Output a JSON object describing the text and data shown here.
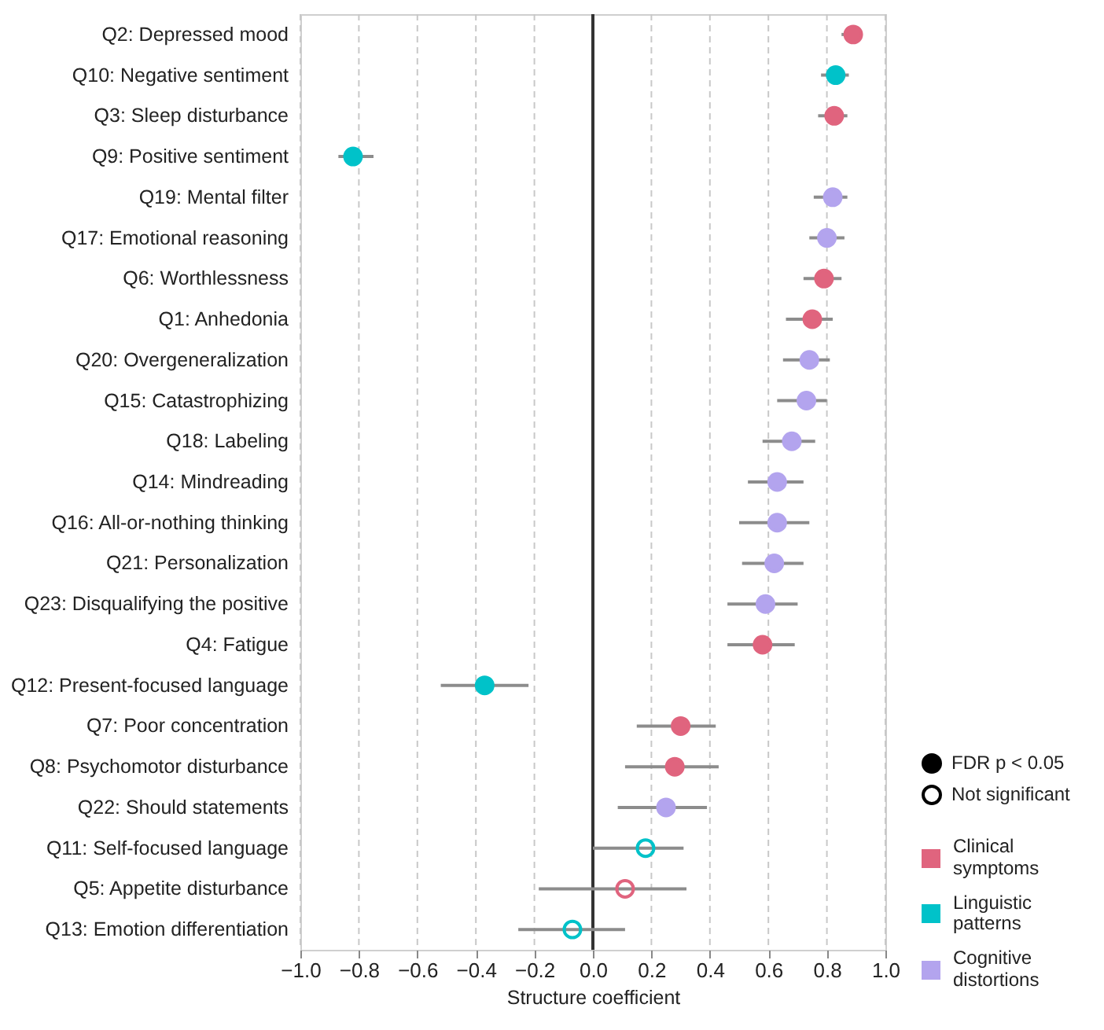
{
  "chart_data": {
    "type": "scatter",
    "orientation": "horizontal",
    "xlabel": "Structure coefficient",
    "categories": [
      "Q2: Depressed mood",
      "Q10: Negative sentiment",
      "Q3: Sleep disturbance",
      "Q9: Positive sentiment",
      "Q19: Mental filter",
      "Q17: Emotional reasoning",
      "Q6: Worthlessness",
      "Q1: Anhedonia",
      "Q20: Overgeneralization",
      "Q15: Catastrophizing",
      "Q18: Labeling",
      "Q14: Mindreading",
      "Q16: All-or-nothing thinking",
      "Q21: Personalization",
      "Q23: Disqualifying the positive",
      "Q4: Fatigue",
      "Q12: Present-focused language",
      "Q7: Poor concentration",
      "Q8: Psychomotor disturbance",
      "Q22: Should statements",
      "Q11: Self-focused language",
      "Q5: Appetite disturbance",
      "Q13: Emotion differentiation"
    ],
    "series": [
      {
        "name": "FDR p < 0.05",
        "values": [
          0.89,
          0.83,
          0.825,
          -0.82,
          0.82,
          0.8,
          0.79,
          0.75,
          0.74,
          0.73,
          0.68,
          0.63,
          0.63,
          0.62,
          0.59,
          0.58,
          -0.37,
          0.3,
          0.28,
          0.25,
          null,
          null,
          null
        ],
        "errors": [
          [
            0.85,
            0.92
          ],
          [
            0.78,
            0.875
          ],
          [
            0.77,
            0.87
          ],
          [
            -0.87,
            -0.75
          ],
          [
            0.755,
            0.87
          ],
          [
            0.74,
            0.86
          ],
          [
            0.72,
            0.85
          ],
          [
            0.66,
            0.82
          ],
          [
            0.65,
            0.81
          ],
          [
            0.63,
            0.8
          ],
          [
            0.58,
            0.76
          ],
          [
            0.53,
            0.72
          ],
          [
            0.5,
            0.74
          ],
          [
            0.51,
            0.72
          ],
          [
            0.46,
            0.7
          ],
          [
            0.46,
            0.69
          ],
          [
            -0.52,
            -0.22
          ],
          [
            0.15,
            0.42
          ],
          [
            0.11,
            0.43
          ],
          [
            0.085,
            0.39
          ],
          null,
          null,
          null
        ],
        "colors": [
          "#e0647e",
          "#00c2c9",
          "#e0647e",
          "#00c2c9",
          "#b3a4ee",
          "#b3a4ee",
          "#e0647e",
          "#e0647e",
          "#b3a4ee",
          "#b3a4ee",
          "#b3a4ee",
          "#b3a4ee",
          "#b3a4ee",
          "#b3a4ee",
          "#b3a4ee",
          "#e0647e",
          "#00c2c9",
          "#e0647e",
          "#e0647e",
          "#b3a4ee",
          null,
          null,
          null
        ]
      },
      {
        "name": "Not significant",
        "values": [
          null,
          null,
          null,
          null,
          null,
          null,
          null,
          null,
          null,
          null,
          null,
          null,
          null,
          null,
          null,
          null,
          null,
          null,
          null,
          null,
          0.18,
          0.11,
          -0.07
        ],
        "errors": [
          null,
          null,
          null,
          null,
          null,
          null,
          null,
          null,
          null,
          null,
          null,
          null,
          null,
          null,
          null,
          null,
          null,
          null,
          null,
          null,
          [
            0.0,
            0.31
          ],
          [
            -0.185,
            0.32
          ],
          [
            -0.255,
            0.11
          ]
        ],
        "colors": [
          null,
          null,
          null,
          null,
          null,
          null,
          null,
          null,
          null,
          null,
          null,
          null,
          null,
          null,
          null,
          null,
          null,
          null,
          null,
          null,
          "#00c2c9",
          "#e0647e",
          "#00c2c9"
        ]
      }
    ],
    "annotations": [
      "Clinical symptoms",
      "Linguistic patterns",
      "Cognitive distortions"
    ],
    "colors": [
      "#e0647e",
      "#00c2c9",
      "#b3a4ee"
    ],
    "xlim": [
      -1.0,
      1.0
    ],
    "xticks": [
      {
        "value": -1.0,
        "label": "−1.0"
      },
      {
        "value": -0.8,
        "label": "−0.8"
      },
      {
        "value": -0.6,
        "label": "−0.6"
      },
      {
        "value": -0.4,
        "label": "−0.4"
      },
      {
        "value": -0.2,
        "label": "−0.2"
      },
      {
        "value": 0.0,
        "label": "0.0"
      },
      {
        "value": 0.2,
        "label": "0.2"
      },
      {
        "value": 0.4,
        "label": "0.4"
      },
      {
        "value": 0.6,
        "label": "0.6"
      },
      {
        "value": 0.8,
        "label": "0.8"
      },
      {
        "value": 1.0,
        "label": "1.0"
      }
    ],
    "ref_lines": [
      {
        "axis": "x",
        "value": 0,
        "color": "#333333"
      }
    ],
    "grid": "x",
    "legend": "bottom right",
    "marker": "circle"
  }
}
